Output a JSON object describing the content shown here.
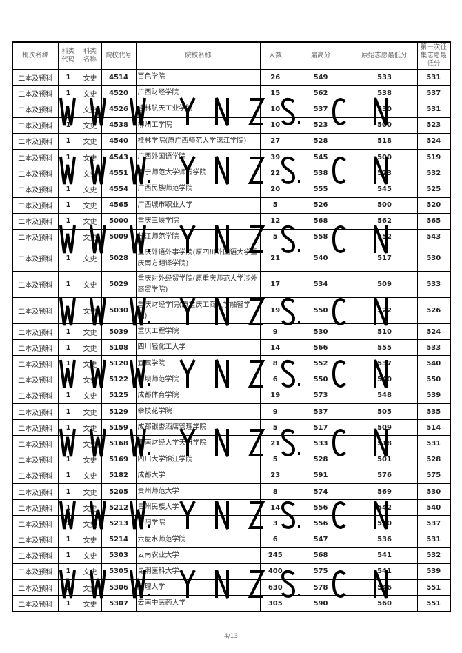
{
  "headers": [
    "批次名称",
    "科类代码",
    "科类名称",
    "院校代号",
    "院校名称",
    "人数",
    "最高分",
    "原始志愿最低分",
    "第一次征集志愿最低分"
  ],
  "rows": [
    [
      "二本及预科",
      "1",
      "文史",
      "4514",
      "百色学院",
      "26",
      "549",
      "533",
      "531"
    ],
    [
      "二本及预科",
      "1",
      "文史",
      "4520",
      "广西财经学院",
      "15",
      "562",
      "538",
      "537"
    ],
    [
      "二本及预科",
      "1",
      "文史",
      "4526",
      "桂林航天工业学院",
      "10",
      "537",
      "530",
      "531"
    ],
    [
      "二本及预科",
      "1",
      "文史",
      "4538",
      "柳州工学院",
      "10",
      "523",
      "500",
      "523"
    ],
    [
      "二本及预科",
      "1",
      "文史",
      "4540",
      "桂林学院(原广西师范大学漓江学院)",
      "27",
      "528",
      "518",
      "524"
    ],
    [
      "二本及预科",
      "1",
      "文史",
      "4543",
      "广西外国语学院",
      "39",
      "545",
      "500",
      "519"
    ],
    [
      "二本及预科",
      "1",
      "文史",
      "4551",
      "南宁师范大学师园学院",
      "22",
      "538",
      "523",
      "532"
    ],
    [
      "二本及预科",
      "1",
      "文史",
      "4554",
      "广西民族师范学院",
      "20",
      "555",
      "545",
      "525"
    ],
    [
      "二本及预科",
      "1",
      "文史",
      "4565",
      "广西城市职业大学",
      "5",
      "526",
      "500",
      "520"
    ],
    [
      "二本及预科",
      "1",
      "文史",
      "5000",
      "重庆三峡学院",
      "12",
      "568",
      "562",
      "565"
    ],
    [
      "二本及预科",
      "1",
      "文史",
      "5009",
      "长江师范学院",
      "5",
      "558",
      "552",
      "543"
    ],
    [
      "二本及预科",
      "1",
      "文史",
      "5028",
      "重庆外语外事学院(原四川外国语大学重庆南方翻译学院)",
      "21",
      "540",
      "517",
      "530"
    ],
    [
      "二本及预科",
      "1",
      "文史",
      "5029",
      "重庆对外经贸学院(原重庆师范大学涉外商贸学院)",
      "17",
      "534",
      "509",
      "533"
    ],
    [
      "二本及预科",
      "1",
      "文史",
      "5030",
      "重庆财经学院(原重庆工商大学融智学院)",
      "19",
      "550",
      "522",
      "526"
    ],
    [
      "二本及预科",
      "1",
      "文史",
      "5039",
      "重庆工程学院",
      "9",
      "530",
      "510",
      "524"
    ],
    [
      "二本及预科",
      "1",
      "文史",
      "5108",
      "四川轻化工大学",
      "14",
      "566",
      "555",
      "533"
    ],
    [
      "二本及预科",
      "1",
      "文史",
      "5120",
      "宜宾学院",
      "8",
      "552",
      "537",
      "540"
    ],
    [
      "二本及预科",
      "1",
      "文史",
      "5122",
      "阿坝师范学院",
      "6",
      "550",
      "540",
      "550"
    ],
    [
      "二本及预科",
      "1",
      "文史",
      "5125",
      "成都体育学院",
      "19",
      "573",
      "548",
      "539"
    ],
    [
      "二本及预科",
      "1",
      "文史",
      "5129",
      "攀枝花学院",
      "9",
      "537",
      "505",
      "535"
    ],
    [
      "二本及预科",
      "1",
      "文史",
      "5159",
      "成都银杏酒店管理学院",
      "5",
      "517",
      "509",
      "514"
    ],
    [
      "二本及预科",
      "1",
      "文史",
      "5168",
      "西南财经大学天府学院",
      "21",
      "533",
      "518",
      "531"
    ],
    [
      "二本及预科",
      "1",
      "文史",
      "5169",
      "四川大学锦江学院",
      "5",
      "528",
      "501",
      "528"
    ],
    [
      "二本及预科",
      "1",
      "文史",
      "5182",
      "成都大学",
      "23",
      "591",
      "576",
      "575"
    ],
    [
      "二本及预科",
      "1",
      "文史",
      "5205",
      "贵州师范大学",
      "8",
      "574",
      "569",
      "530"
    ],
    [
      "二本及预科",
      "1",
      "文史",
      "5212",
      "贵州民族大学",
      "14",
      "556",
      "542",
      "540"
    ],
    [
      "二本及预科",
      "1",
      "文史",
      "5213",
      "贵阳学院",
      "3",
      "556",
      "550",
      "537"
    ],
    [
      "二本及预科",
      "1",
      "文史",
      "5214",
      "六盘水师范学院",
      "6",
      "547",
      "536",
      "531"
    ],
    [
      "二本及预科",
      "1",
      "文史",
      "5303",
      "云南农业大学",
      "245",
      "568",
      "541",
      "532"
    ],
    [
      "二本及预科",
      "1",
      "文史",
      "5305",
      "昆明医科大学",
      "400",
      "575",
      "541",
      "539"
    ],
    [
      "二本及预科",
      "1",
      "文史",
      "5306",
      "大理大学",
      "630",
      "578",
      "546",
      "551"
    ],
    [
      "二本及预科",
      "1",
      "文史",
      "5307",
      "云南中医药大学",
      "305",
      "590",
      "560",
      "551"
    ]
  ],
  "watermark": [
    "W",
    "W",
    "W.",
    "Y",
    "N",
    "Z",
    "S.",
    "C",
    "N"
  ],
  "page_number": "4/13"
}
